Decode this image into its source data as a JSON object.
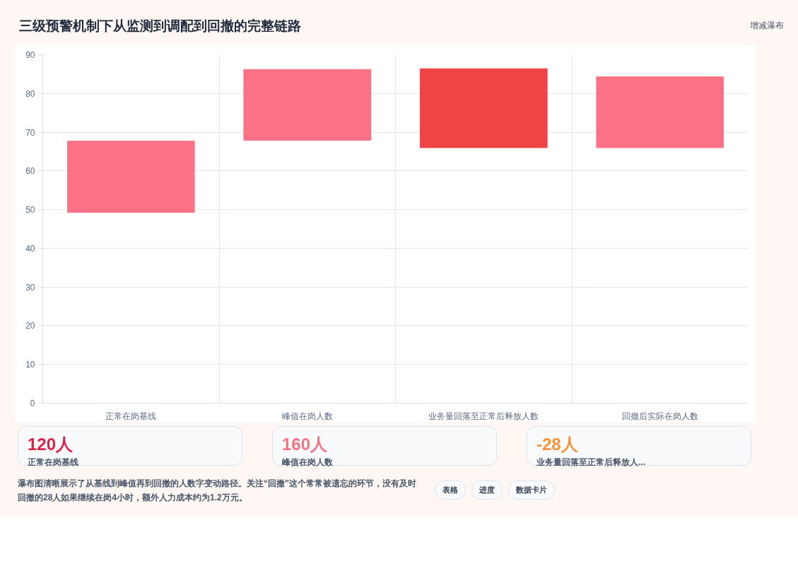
{
  "chart_data": {
    "type": "bar",
    "title": "三级预警机制下从监测到调配到回撤的完整链路",
    "categories": [
      "正常在岗基线",
      "峰值在岗人数",
      "业务量回落至正常后释放人数",
      "回撤后实际在岗人数"
    ],
    "base": [
      49.3,
      67.9,
      66,
      66
    ],
    "values": [
      18.4,
      18.3,
      20.4,
      18.3
    ],
    "colors": [
      "#fb7185",
      "#fb7185",
      "#ef4444",
      "#fb7185"
    ],
    "ylim": [
      0,
      90
    ],
    "yticks": [
      0,
      10,
      20,
      30,
      40,
      50,
      60,
      70,
      80,
      90
    ],
    "grid": true,
    "annotations": [
      "增减瀑布",
      "120人",
      "正常在岗基线",
      "160人",
      "峰值在岗人数",
      "-28人",
      "业务量回落至正常后释放人...",
      "瀑布图清晰展示了从基线到峰值再到回撤的人数字变动路径。关注“回撤”这个常常被遗忘的环节，没有及时回撤的28人如果继续在岗4小时，额外人力成本约为1.2万元。",
      "表格",
      "进度",
      "数据卡片"
    ]
  }
}
